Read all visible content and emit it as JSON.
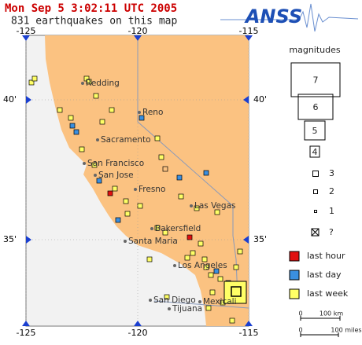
{
  "header": {
    "timestamp": "Mon Sep 5 3:02:11 UTC 2005",
    "count": "831 earthquakes on this map",
    "logo": "ANSS"
  },
  "map": {
    "lon_labels": [
      "-125",
      "-120",
      "-115"
    ],
    "lat_labels": [
      "40'",
      "35'"
    ],
    "cities": [
      "Redding",
      "Reno",
      "Sacramento",
      "San Francisco",
      "San Jose",
      "Fresno",
      "Las Vegas",
      "Bakersfield",
      "Santa Maria",
      "Los Angeles",
      "San Diego",
      "Mexicali",
      "Tijuana"
    ]
  },
  "legend": {
    "title": "magnitudes",
    "big": [
      "7",
      "6",
      "5",
      "4"
    ],
    "small": [
      "3",
      "2",
      "1"
    ],
    "unknown": "?",
    "ages": [
      "last hour",
      "last day",
      "last week"
    ]
  },
  "scale": {
    "km_zero": "0",
    "km": "100 km",
    "mi_zero": "0",
    "mi": "100 miles"
  }
}
